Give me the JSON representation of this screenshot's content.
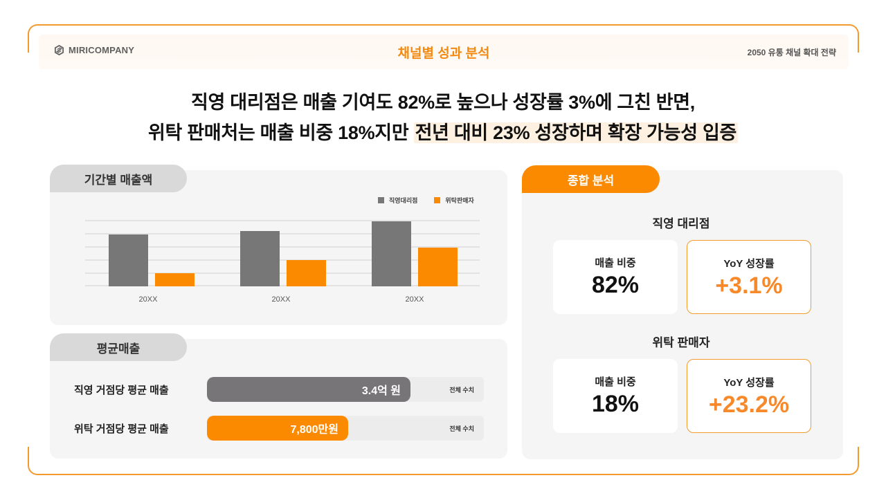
{
  "header": {
    "logo_text": "MIRICOMPANY",
    "title": "채널별 성과 분석",
    "right_text": "2050 유통 채널 확대 전략"
  },
  "headline": {
    "line1": "직영 대리점은 매출 기여도 82%로 높으나 성장률 3%에 그친 반면,",
    "line2_plain": "위탁 판매처는 매출 비중 18%지만 ",
    "line2_highlight": "전년 대비 23% 성장하며 확장 가능성 입증"
  },
  "period_sales": {
    "tab_label": "기간별 매출액",
    "legend": [
      {
        "label": "직영대리점",
        "color": "#777777"
      },
      {
        "label": "위탁판매자",
        "color": "#fb8a00"
      }
    ]
  },
  "chart_data": {
    "type": "bar",
    "title": "기간별 매출액",
    "categories": [
      "20XX",
      "20XX",
      "20XX"
    ],
    "series": [
      {
        "name": "직영대리점",
        "color": "#777777",
        "values": [
          4,
          4.25,
          5
        ]
      },
      {
        "name": "위탁판매자",
        "color": "#fb8a00",
        "values": [
          1,
          2,
          3
        ]
      }
    ],
    "xlabel": "",
    "ylabel": "",
    "ylim": [
      0,
      5
    ],
    "grid": true,
    "gridlines": 6,
    "legend_position": "top-right",
    "y_tick_labels_visible": false
  },
  "avg_sales": {
    "tab_label": "평균매출",
    "rows": [
      {
        "label": "직영 거점당 평균 매출",
        "value": "3.4억 원",
        "total_label": "전체 수치",
        "fill_pct": 73.5,
        "color": "#777577"
      },
      {
        "label": "위탁 거점당 평균 매출",
        "value": "7,800만원",
        "total_label": "전체 수치",
        "fill_pct": 51,
        "color": "#fb8a00"
      }
    ]
  },
  "summary": {
    "tab_label": "종합 분석",
    "groups": [
      {
        "heading": "직영 대리점",
        "share_label": "매출 비중",
        "share_value": "82%",
        "growth_label": "YoY 성장률",
        "growth_value": "+3.1%"
      },
      {
        "heading": "위탁 판매자",
        "share_label": "매출 비중",
        "share_value": "18%",
        "growth_label": "YoY 성장률",
        "growth_value": "+23.2%"
      }
    ]
  },
  "colors": {
    "accent": "#fb8a00",
    "frame": "#f39a2e",
    "gray_bar": "#777777",
    "panel_bg": "#f5f5f5",
    "highlight_bg": "#fff1e2"
  }
}
